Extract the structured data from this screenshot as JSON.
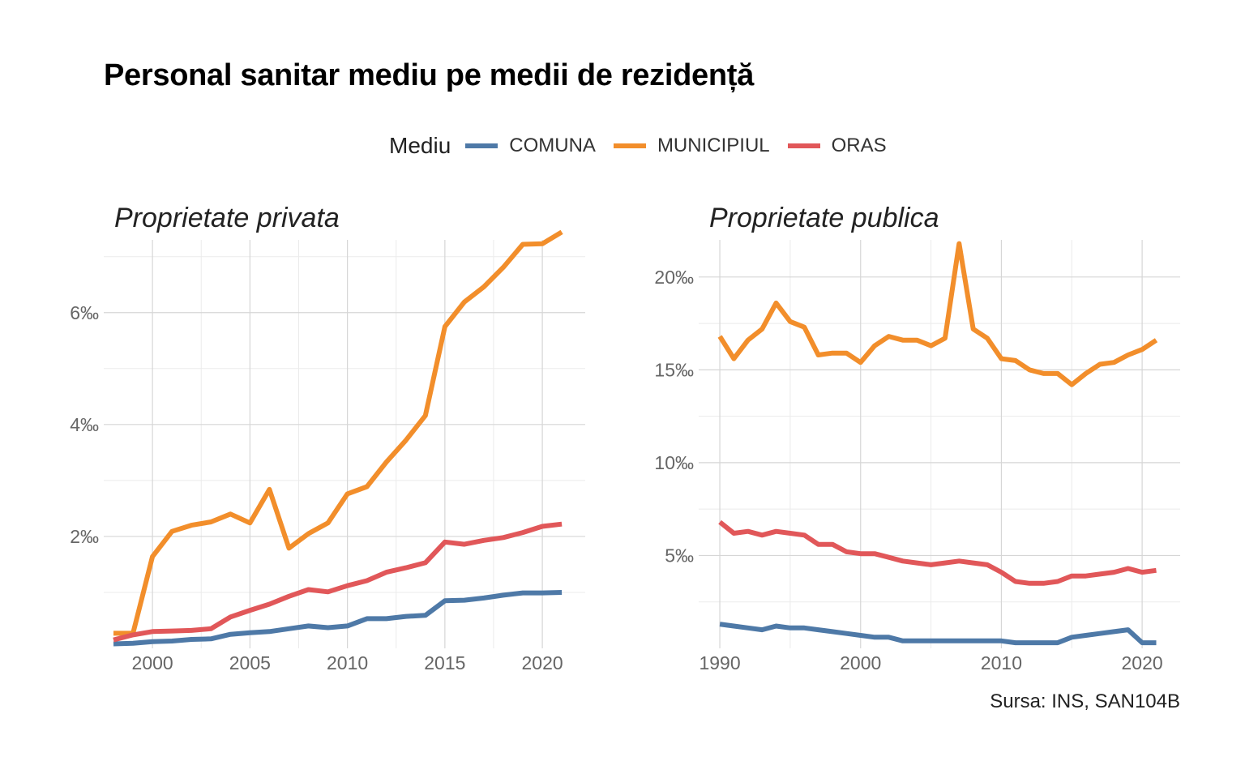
{
  "title": "Personal sanitar mediu pe medii de rezidență",
  "caption": "Sursa: INS, SAN104B",
  "legend": {
    "title": "Mediu",
    "items": [
      {
        "label": "COMUNA",
        "color": "#4e79a7"
      },
      {
        "label": "MUNICIPIUL",
        "color": "#f28e2b"
      },
      {
        "label": "ORAS",
        "color": "#e15759"
      }
    ]
  },
  "chart_data": [
    {
      "type": "line",
      "title": "Proprietate privata",
      "xlim": [
        1997.5,
        2022.2
      ],
      "ylim": [
        0.0,
        7.3
      ],
      "x_ticks": [
        2000,
        2005,
        2010,
        2015,
        2020
      ],
      "x_tick_labels": [
        "2000",
        "2005",
        "2010",
        "2015",
        "2020"
      ],
      "y_ticks": [
        2,
        4,
        6
      ],
      "y_tick_labels": [
        "2‰",
        "4‰",
        "6‰"
      ],
      "x": [
        1998,
        1999,
        2000,
        2001,
        2002,
        2003,
        2004,
        2005,
        2006,
        2007,
        2008,
        2009,
        2010,
        2011,
        2012,
        2013,
        2014,
        2015,
        2016,
        2017,
        2018,
        2019,
        2020,
        2021
      ],
      "series": [
        {
          "name": "COMUNA",
          "color": "#4e79a7",
          "values": [
            0.08,
            0.09,
            0.12,
            0.13,
            0.16,
            0.17,
            0.25,
            0.28,
            0.3,
            0.35,
            0.4,
            0.37,
            0.4,
            0.53,
            0.53,
            0.57,
            0.59,
            0.85,
            0.86,
            0.9,
            0.95,
            0.99,
            0.99,
            1.0
          ]
        },
        {
          "name": "MUNICIPIUL",
          "color": "#f28e2b",
          "values": [
            0.27,
            0.27,
            1.64,
            2.09,
            2.2,
            2.26,
            2.4,
            2.24,
            2.84,
            1.79,
            2.05,
            2.24,
            2.76,
            2.89,
            3.33,
            3.72,
            4.16,
            5.75,
            6.19,
            6.46,
            6.81,
            7.22,
            7.23,
            7.44
          ]
        },
        {
          "name": "ORAS",
          "color": "#e15759",
          "values": [
            0.15,
            0.24,
            0.3,
            0.31,
            0.32,
            0.35,
            0.56,
            0.68,
            0.79,
            0.93,
            1.05,
            1.01,
            1.12,
            1.21,
            1.36,
            1.44,
            1.53,
            1.9,
            1.86,
            1.93,
            1.98,
            2.07,
            2.18,
            2.22
          ]
        }
      ]
    },
    {
      "type": "line",
      "title": "Proprietate publica",
      "xlim": [
        1988.5,
        2022.7
      ],
      "ylim": [
        0.0,
        22.0
      ],
      "x_ticks": [
        1990,
        2000,
        2010,
        2020
      ],
      "x_tick_labels": [
        "1990",
        "2000",
        "2010",
        "2020"
      ],
      "y_ticks": [
        5,
        10,
        15,
        20
      ],
      "y_tick_labels": [
        "5‰",
        "10‰",
        "15‰",
        "20‰"
      ],
      "x": [
        1990,
        1991,
        1992,
        1993,
        1994,
        1995,
        1996,
        1997,
        1998,
        1999,
        2000,
        2001,
        2002,
        2003,
        2004,
        2005,
        2006,
        2007,
        2008,
        2009,
        2010,
        2011,
        2012,
        2013,
        2014,
        2015,
        2016,
        2017,
        2018,
        2019,
        2020,
        2021
      ],
      "series": [
        {
          "name": "COMUNA",
          "color": "#4e79a7",
          "values": [
            1.3,
            1.2,
            1.1,
            1.0,
            1.2,
            1.1,
            1.1,
            1.0,
            0.9,
            0.8,
            0.7,
            0.6,
            0.6,
            0.4,
            0.4,
            0.4,
            0.4,
            0.4,
            0.4,
            0.4,
            0.4,
            0.3,
            0.3,
            0.3,
            0.3,
            0.6,
            0.7,
            0.8,
            0.9,
            1.0,
            0.3,
            0.3
          ]
        },
        {
          "name": "MUNICIPIUL",
          "color": "#f28e2b",
          "values": [
            16.8,
            15.6,
            16.6,
            17.2,
            18.6,
            17.6,
            17.3,
            15.8,
            15.9,
            15.9,
            15.4,
            16.3,
            16.8,
            16.6,
            16.6,
            16.3,
            16.7,
            21.8,
            17.2,
            16.7,
            15.6,
            15.5,
            15.0,
            14.8,
            14.8,
            14.2,
            14.8,
            15.3,
            15.4,
            15.8,
            16.1,
            16.6
          ]
        },
        {
          "name": "ORAS",
          "color": "#e15759",
          "values": [
            6.8,
            6.2,
            6.3,
            6.1,
            6.3,
            6.2,
            6.1,
            5.6,
            5.6,
            5.2,
            5.1,
            5.1,
            4.9,
            4.7,
            4.6,
            4.5,
            4.6,
            4.7,
            4.6,
            4.5,
            4.1,
            3.6,
            3.5,
            3.5,
            3.6,
            3.9,
            3.9,
            4.0,
            4.1,
            4.3,
            4.1,
            4.2
          ]
        }
      ]
    }
  ]
}
